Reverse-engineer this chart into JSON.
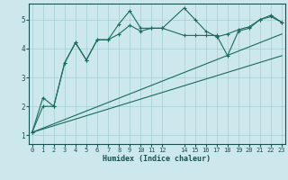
{
  "xlabel": "Humidex (Indice chaleur)",
  "bg_color": "#cce8ec",
  "grid_color": "#a8cdd4",
  "line_color": "#1a6b5a",
  "xlim_min": -0.3,
  "xlim_max": 23.3,
  "ylim_min": 0.7,
  "ylim_max": 5.55,
  "xticks": [
    0,
    1,
    2,
    3,
    4,
    5,
    6,
    7,
    8,
    9,
    10,
    11,
    12,
    14,
    15,
    16,
    17,
    18,
    19,
    20,
    21,
    22,
    23
  ],
  "yticks": [
    1,
    2,
    3,
    4,
    5
  ],
  "line1_x": [
    0,
    1,
    2,
    3,
    4,
    5,
    6,
    7,
    8,
    9,
    10,
    11,
    12,
    14,
    15,
    16,
    17,
    18,
    19,
    20,
    21,
    22,
    23
  ],
  "line1_y": [
    1.1,
    2.3,
    2.0,
    3.5,
    4.2,
    3.6,
    4.3,
    4.3,
    4.85,
    5.3,
    4.7,
    4.7,
    4.7,
    5.4,
    5.0,
    4.6,
    4.4,
    4.5,
    4.65,
    4.75,
    5.0,
    5.15,
    4.9
  ],
  "line2_x": [
    0,
    1,
    2,
    3,
    4,
    5,
    6,
    7,
    8,
    9,
    10,
    11,
    12,
    14,
    15,
    16,
    17,
    18,
    19,
    20,
    21,
    22,
    23
  ],
  "line2_y": [
    1.1,
    2.0,
    2.0,
    3.5,
    4.2,
    3.6,
    4.3,
    4.3,
    4.5,
    4.8,
    4.6,
    4.7,
    4.7,
    4.45,
    4.45,
    4.45,
    4.45,
    3.75,
    4.6,
    4.7,
    5.0,
    5.1,
    4.9
  ],
  "line3_x": [
    0,
    23
  ],
  "line3_y": [
    1.1,
    4.5
  ],
  "line4_x": [
    0,
    23
  ],
  "line4_y": [
    1.1,
    3.75
  ]
}
